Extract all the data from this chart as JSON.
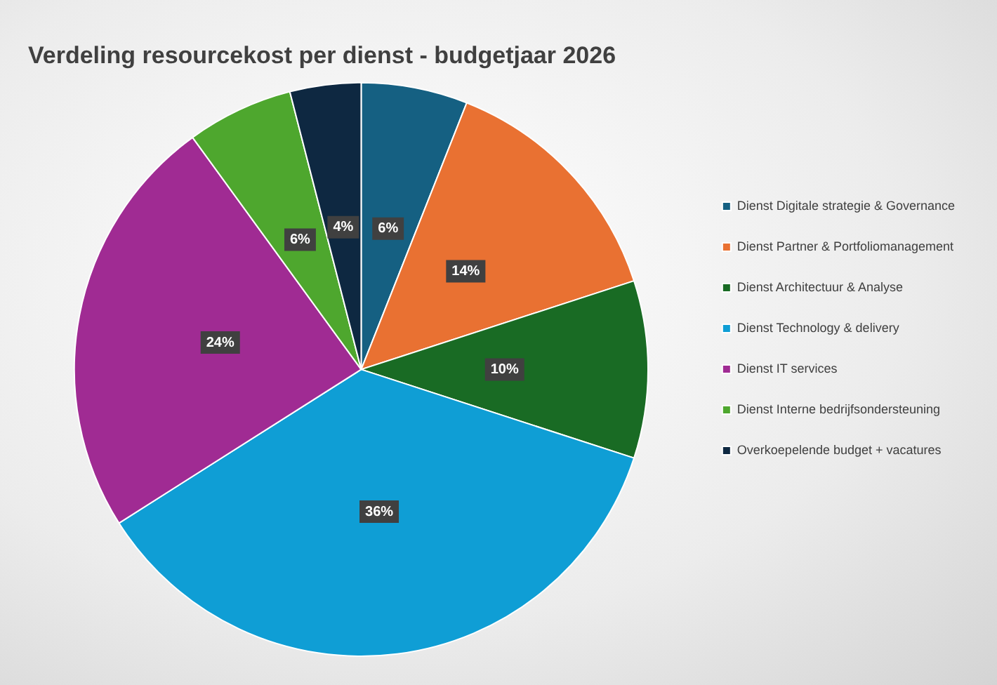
{
  "chart_data": {
    "type": "pie",
    "title": "Verdeling resourcekost per dienst - budgetjaar 2026",
    "categories": [
      "Dienst Digitale strategie & Governance",
      "Dienst Partner & Portfoliomanagement",
      "Dienst Architectuur & Analyse",
      "Dienst Technology & delivery",
      "Dienst IT services",
      "Dienst Interne bedrijfsondersteuning",
      "Overkoepelende budget + vacatures"
    ],
    "values": [
      6,
      14,
      10,
      36,
      24,
      6,
      4
    ],
    "value_labels": [
      "6%",
      "14%",
      "10%",
      "36%",
      "24%",
      "6%",
      "4%"
    ],
    "colors": [
      "#156082",
      "#e97132",
      "#196b24",
      "#0f9ed5",
      "#a02b93",
      "#4ea72e",
      "#0e2841"
    ],
    "legend": "right"
  }
}
